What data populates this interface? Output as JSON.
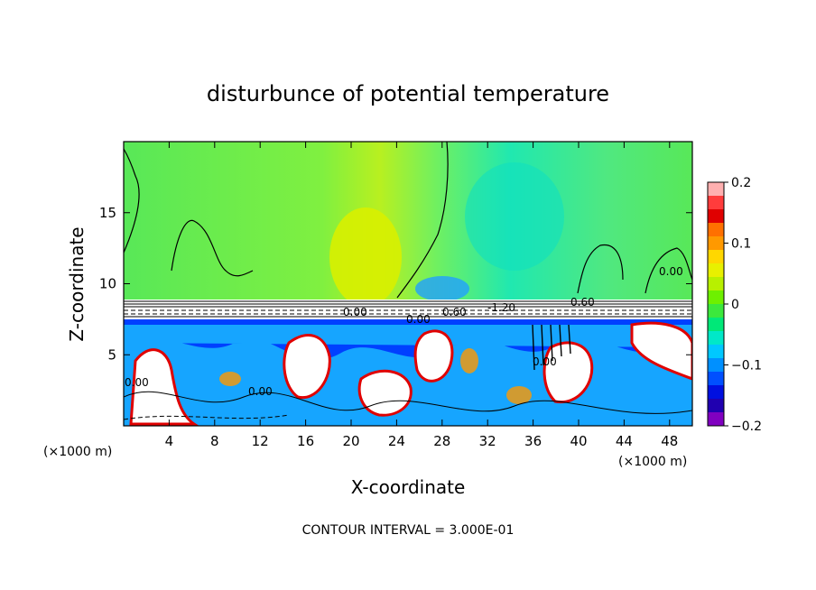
{
  "chart_data": {
    "type": "heatmap",
    "title": "disturbunce of potential temperature",
    "xlabel": "X-coordinate",
    "ylabel": "Z-coordinate",
    "x_unit_left": "(×1000 m)",
    "x_unit_right": "(×1000 m)",
    "xlim": [
      0,
      50
    ],
    "ylim": [
      0,
      20
    ],
    "x_ticks": [
      4,
      8,
      12,
      16,
      20,
      24,
      28,
      32,
      36,
      40,
      44,
      48
    ],
    "y_ticks": [
      5,
      10,
      15
    ],
    "colorbar": {
      "range": [
        -0.2,
        0.2
      ],
      "ticks": [
        "0.2",
        "0.1",
        "0",
        "−0.1",
        "−0.2"
      ],
      "tick_values": [
        0.2,
        0.1,
        0,
        -0.1,
        -0.2
      ],
      "colors": [
        "#ffb0b0",
        "#ff3c3c",
        "#e00000",
        "#ff7000",
        "#ff9900",
        "#ffd700",
        "#e8f000",
        "#b8f000",
        "#6ef000",
        "#3ce83c",
        "#00e878",
        "#00e8c8",
        "#00c8ff",
        "#0090ff",
        "#0050ff",
        "#0010e0",
        "#2000b0",
        "#8000c0"
      ]
    },
    "contour_labels": [
      "0.00",
      "0.00",
      "0.00",
      "0.00",
      "0.60",
      "0.60",
      "-1.20",
      "0.00",
      "0.00"
    ],
    "annotation": "CONTOUR INTERVAL = 3.000E-01"
  }
}
